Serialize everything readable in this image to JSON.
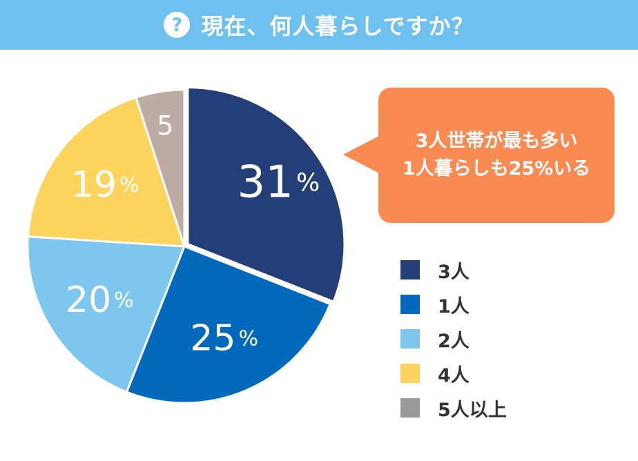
{
  "header": {
    "icon": "question-mark-icon",
    "icon_glyph": "?",
    "title": "現在、何人暮らしですか？",
    "background_color": "#6ec1ef"
  },
  "callout": {
    "line1": "3人世帯が最も多い",
    "line2": "1人暮らしも25%いる",
    "color": "#f98a52"
  },
  "chart_data": {
    "type": "pie",
    "title": "",
    "start_angle_deg": 0,
    "direction": "clockwise",
    "slices": [
      {
        "label": "3人",
        "value": 31,
        "display": "31",
        "unit": "%",
        "color": "#243f77",
        "exploded": true
      },
      {
        "label": "1人",
        "value": 25,
        "display": "25",
        "unit": "%",
        "color": "#0069bb",
        "exploded": false
      },
      {
        "label": "2人",
        "value": 20,
        "display": "20",
        "unit": "%",
        "color": "#7dc6ed",
        "exploded": false
      },
      {
        "label": "4人",
        "value": 19,
        "display": "19",
        "unit": "%",
        "color": "#fcd45e",
        "exploded": false
      },
      {
        "label": "5人以上",
        "value": 5,
        "display": "5",
        "unit": "",
        "color": "#bdaba4",
        "exploded": false
      }
    ],
    "legend_position": "right",
    "legend": [
      {
        "label": "3人",
        "color": "#243f77"
      },
      {
        "label": "1人",
        "color": "#0069bb"
      },
      {
        "label": "2人",
        "color": "#7dc6ed"
      },
      {
        "label": "4人",
        "color": "#fcd45e"
      },
      {
        "label": "5人以上",
        "color": "#999999"
      }
    ]
  }
}
